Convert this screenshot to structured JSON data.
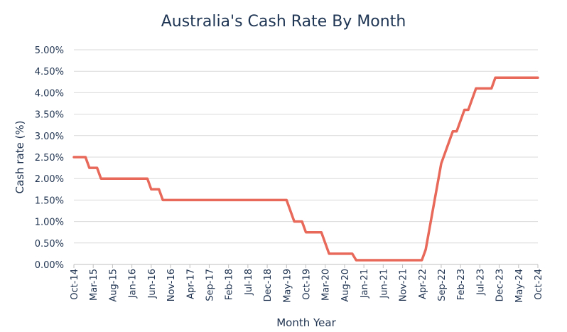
{
  "chart_data": {
    "type": "line",
    "title": "Australia's Cash Rate By Month",
    "xlabel": "Month Year",
    "ylabel": "Cash rate (%)",
    "ylim": [
      0,
      5
    ],
    "grid": true,
    "line_color": "#e8685a",
    "grid_color": "#d9d9d9",
    "yticks": [
      0,
      0.5,
      1,
      1.5,
      2,
      2.5,
      3,
      3.5,
      4,
      4.5,
      5
    ],
    "ytick_labels": [
      "0.00%",
      "0.50%",
      "1.00%",
      "1.50%",
      "2.00%",
      "2.50%",
      "3.00%",
      "3.50%",
      "4.00%",
      "4.50%",
      "5.00%"
    ],
    "xtick_labels": [
      "Oct-14",
      "Mar-15",
      "Aug-15",
      "Jan-16",
      "Jun-16",
      "Nov-16",
      "Apr-17",
      "Sep-17",
      "Feb-18",
      "Jul-18",
      "Dec-18",
      "May-19",
      "Oct-19",
      "Mar-20",
      "Aug-20",
      "Jan-21",
      "Jun-21",
      "Nov-21",
      "Apr-22",
      "Sep-22",
      "Feb-23",
      "Jul-23",
      "Dec-23",
      "May-24",
      "Oct-24"
    ],
    "series": [
      {
        "x": [
          "Oct-14",
          "Nov-14",
          "Dec-14",
          "Jan-15",
          "Feb-15",
          "Mar-15",
          "Apr-15",
          "May-15",
          "Jun-15",
          "Jul-15",
          "Aug-15",
          "Sep-15",
          "Oct-15",
          "Nov-15",
          "Dec-15",
          "Jan-16",
          "Feb-16",
          "Mar-16",
          "Apr-16",
          "May-16",
          "Jun-16",
          "Jul-16",
          "Aug-16",
          "Sep-16",
          "Oct-16",
          "Nov-16",
          "Dec-16",
          "Jan-17",
          "Feb-17",
          "Mar-17",
          "Apr-17",
          "May-17",
          "Jun-17",
          "Jul-17",
          "Aug-17",
          "Sep-17",
          "Oct-17",
          "Nov-17",
          "Dec-17",
          "Jan-18",
          "Feb-18",
          "Mar-18",
          "Apr-18",
          "May-18",
          "Jun-18",
          "Jul-18",
          "Aug-18",
          "Sep-18",
          "Oct-18",
          "Nov-18",
          "Dec-18",
          "Jan-19",
          "Feb-19",
          "Mar-19",
          "Apr-19",
          "May-19",
          "Jun-19",
          "Jul-19",
          "Aug-19",
          "Sep-19",
          "Oct-19",
          "Nov-19",
          "Dec-19",
          "Jan-20",
          "Feb-20",
          "Mar-20",
          "Apr-20",
          "May-20",
          "Jun-20",
          "Jul-20",
          "Aug-20",
          "Sep-20",
          "Oct-20",
          "Nov-20",
          "Dec-20",
          "Jan-21",
          "Feb-21",
          "Mar-21",
          "Apr-21",
          "May-21",
          "Jun-21",
          "Jul-21",
          "Aug-21",
          "Sep-21",
          "Oct-21",
          "Nov-21",
          "Dec-21",
          "Jan-22",
          "Feb-22",
          "Mar-22",
          "Apr-22",
          "May-22",
          "Jun-22",
          "Jul-22",
          "Aug-22",
          "Sep-22",
          "Oct-22",
          "Nov-22",
          "Dec-22",
          "Jan-23",
          "Feb-23",
          "Mar-23",
          "Apr-23",
          "May-23",
          "Jun-23",
          "Jul-23",
          "Aug-23",
          "Sep-23",
          "Oct-23",
          "Nov-23",
          "Dec-23",
          "Jan-24",
          "Feb-24",
          "Mar-24",
          "Apr-24",
          "May-24",
          "Jun-24",
          "Jul-24",
          "Aug-24",
          "Sep-24",
          "Oct-24"
        ],
        "values": [
          2.5,
          2.5,
          2.5,
          2.5,
          2.25,
          2.25,
          2.25,
          2.0,
          2.0,
          2.0,
          2.0,
          2.0,
          2.0,
          2.0,
          2.0,
          2.0,
          2.0,
          2.0,
          2.0,
          2.0,
          1.75,
          1.75,
          1.75,
          1.5,
          1.5,
          1.5,
          1.5,
          1.5,
          1.5,
          1.5,
          1.5,
          1.5,
          1.5,
          1.5,
          1.5,
          1.5,
          1.5,
          1.5,
          1.5,
          1.5,
          1.5,
          1.5,
          1.5,
          1.5,
          1.5,
          1.5,
          1.5,
          1.5,
          1.5,
          1.5,
          1.5,
          1.5,
          1.5,
          1.5,
          1.5,
          1.5,
          1.25,
          1.0,
          1.0,
          1.0,
          0.75,
          0.75,
          0.75,
          0.75,
          0.75,
          0.5,
          0.25,
          0.25,
          0.25,
          0.25,
          0.25,
          0.25,
          0.25,
          0.1,
          0.1,
          0.1,
          0.1,
          0.1,
          0.1,
          0.1,
          0.1,
          0.1,
          0.1,
          0.1,
          0.1,
          0.1,
          0.1,
          0.1,
          0.1,
          0.1,
          0.1,
          0.35,
          0.85,
          1.35,
          1.85,
          2.35,
          2.6,
          2.85,
          3.1,
          3.1,
          3.35,
          3.6,
          3.6,
          3.85,
          4.1,
          4.1,
          4.1,
          4.1,
          4.1,
          4.35,
          4.35,
          4.35,
          4.35,
          4.35,
          4.35,
          4.35,
          4.35,
          4.35,
          4.35,
          4.35,
          4.35
        ]
      }
    ]
  }
}
